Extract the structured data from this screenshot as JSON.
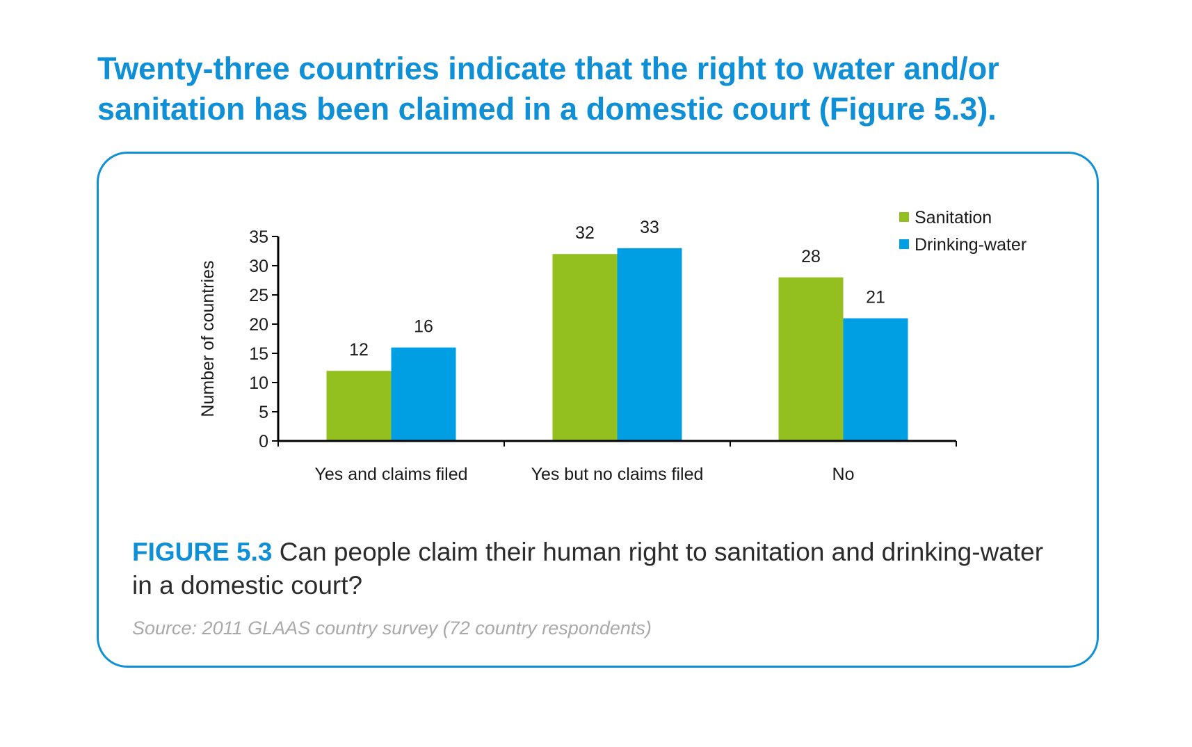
{
  "headline": {
    "line1": "Twenty-three countries indicate that the right to water and/or",
    "line2": "sanitation has been claimed in a domestic court (Figure 5.3)."
  },
  "caption": {
    "figure_label": "FIGURE 5.3",
    "text": "Can people claim their human right to sanitation and drinking-water in a domestic court?"
  },
  "source": "Source: 2011 GLAAS country survey (72 country respondents)",
  "colors": {
    "accent": "#0e8fd6",
    "sanitation": "#93c01f",
    "drinking_water": "#009fe3"
  },
  "chart_data": {
    "type": "bar",
    "categories": [
      "Yes and claims filed",
      "Yes but no claims filed",
      "No"
    ],
    "series": [
      {
        "name": "Sanitation",
        "values": [
          12,
          32,
          28
        ],
        "color": "#93c01f"
      },
      {
        "name": "Drinking-water",
        "values": [
          16,
          33,
          21
        ],
        "color": "#009fe3"
      }
    ],
    "ylabel": "Number of countries",
    "ylim": [
      0,
      35
    ],
    "yticks": [
      0,
      5,
      10,
      15,
      20,
      25,
      30,
      35
    ],
    "data_labels": true,
    "grid": false,
    "legend_position": "top-right"
  }
}
